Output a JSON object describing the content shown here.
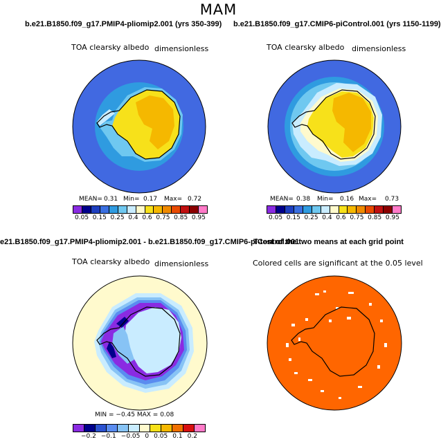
{
  "figure": {
    "season": "MAM"
  },
  "panels": {
    "top_left": {
      "run_title": "b.e21.B1850.f09_g17.PMIP4-pliomip2.001 (yrs 350-399)",
      "variable": "TOA clearsky albedo",
      "units": "dimensionless",
      "mean_label": "MEAN=",
      "mean": "0.31",
      "min_label": "Min=",
      "min": "0.17",
      "max_label": "Max=",
      "max": "0.72"
    },
    "top_right": {
      "run_title": "b.e21.B1850.f09_g17.CMIP6-piControl.001 (yrs 1150-1199)",
      "variable": "TOA clearsky albedo",
      "units": "dimensionless",
      "mean_label": "MEAN=",
      "mean": "0.38",
      "min_label": "Min=",
      "min": "0.16",
      "max_label": "Max=",
      "max": "0.73"
    },
    "bottom_left": {
      "run_title": "e21.B1850.f09_g17.PMIP4-pliomip2.001 - b.e21.B1850.f09_g17.CMIP6-piControl.001",
      "variable": "TOA clearsky albedo",
      "units": "dimensionless",
      "stats_text": "MIN = −0.45 MAX = 0.08"
    },
    "bottom_right": {
      "run_title": "T-test of the two means at each grid point",
      "caption": "Colored cells are significant at the 0.05 level"
    }
  },
  "colorbars": {
    "absolute": {
      "colors": [
        "#8a2be2",
        "#00008b",
        "#1e3fbf",
        "#3a6fe0",
        "#2f9be0",
        "#6fc8f0",
        "#c9ecff",
        "#fffacd",
        "#f7e11a",
        "#f5b800",
        "#f08a00",
        "#e84a00",
        "#c01010",
        "#8b0000",
        "#ff7ac8"
      ],
      "tick_labels": [
        "0.05",
        "0.15",
        "0.25",
        "0.4",
        "0.6",
        "0.75",
        "0.85",
        "0.95"
      ]
    },
    "difference": {
      "colors": [
        "#8a2be2",
        "#00008b",
        "#2b52d0",
        "#5a8cf0",
        "#87c3f5",
        "#c9ecff",
        "#fffacd",
        "#f7e11a",
        "#f5b800",
        "#f07000",
        "#d81010",
        "#ff7ac8"
      ],
      "tick_labels": [
        "−0.2",
        "−0.1",
        "−0.05",
        "0",
        "0.05",
        "0.1",
        "0.2"
      ]
    }
  },
  "palette": {
    "ocean_blue": "#4169e1",
    "ice_yellow": "#f7e11a",
    "ice_orange": "#f5b800",
    "pale_blue": "#c9ecff",
    "diff_purple": "#8a2be2",
    "diff_bg": "#fffacd",
    "sig_orange": "#ff6600"
  }
}
